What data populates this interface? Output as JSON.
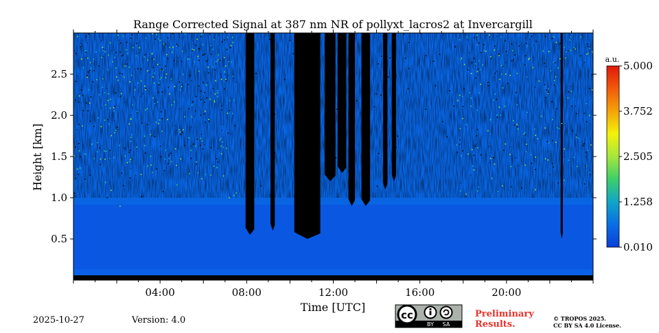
{
  "chart_data": {
    "type": "heatmap",
    "title": "Range Corrected Signal at 387 nm NR of pollyxt_lacros2 at Invercargill",
    "xlabel": "Time [UTC]",
    "ylabel": "Height [km]",
    "xlim_hours": [
      0,
      24
    ],
    "ylim_km": [
      0,
      3.0
    ],
    "x_ticks": [
      {
        "hour": 4,
        "label": "04:00"
      },
      {
        "hour": 8,
        "label": "08:00"
      },
      {
        "hour": 12,
        "label": "12:00"
      },
      {
        "hour": 16,
        "label": "16:00"
      },
      {
        "hour": 20,
        "label": "20:00"
      }
    ],
    "y_ticks": [
      {
        "km": 0.5,
        "label": "0.5"
      },
      {
        "km": 1.0,
        "label": "1.0"
      },
      {
        "km": 1.5,
        "label": "1.5"
      },
      {
        "km": 2.0,
        "label": "2.0"
      },
      {
        "km": 2.5,
        "label": "2.5"
      }
    ],
    "colorbar": {
      "unit": "a.u.",
      "min": 0.01,
      "max": 5.0,
      "ticks": [
        "5.000",
        "3.752",
        "2.505",
        "1.258",
        "0.010"
      ],
      "colors": [
        "#0a3fd6",
        "#0a6ee6",
        "#10a6c8",
        "#3ccf6a",
        "#a6e63c",
        "#f2f20a",
        "#f6a20a",
        "#f25a0a",
        "#e0180a"
      ]
    },
    "cloud_bands_hours": [
      {
        "start": 7.95,
        "end": 8.35,
        "base_km": 0.55
      },
      {
        "start": 9.1,
        "end": 9.3,
        "base_km": 0.6
      },
      {
        "start": 10.2,
        "end": 11.4,
        "base_km": 0.5
      },
      {
        "start": 11.6,
        "end": 12.1,
        "base_km": 1.2
      },
      {
        "start": 12.2,
        "end": 12.6,
        "base_km": 1.3
      },
      {
        "start": 12.7,
        "end": 13.0,
        "base_km": 0.9
      },
      {
        "start": 13.3,
        "end": 13.7,
        "base_km": 0.9
      },
      {
        "start": 14.3,
        "end": 14.5,
        "base_km": 1.1
      },
      {
        "start": 14.7,
        "end": 14.9,
        "base_km": 1.2
      },
      {
        "start": 22.5,
        "end": 22.6,
        "base_km": 0.5
      }
    ]
  },
  "footer": {
    "date": "2025-10-27",
    "version": "Version: 4.0",
    "preliminary_line1": "Preliminary",
    "preliminary_line2": "Results.",
    "copyright_line1": "© TROPOS 2025.",
    "copyright_line2": "CC BY SA 4.0 License.",
    "license_badge": {
      "cc": "cc",
      "by": "BY",
      "sa": "SA",
      "icon": "cc-by-sa-icon"
    }
  }
}
